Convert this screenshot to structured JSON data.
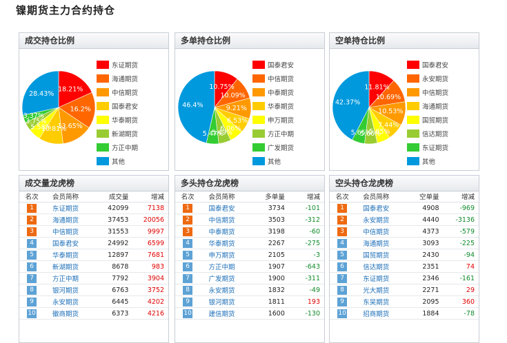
{
  "title": "镍期货主力合约持仓",
  "chart_data": [
    {
      "type": "pie",
      "title": "成交持仓比例",
      "slices": [
        {
          "name": "东证期货",
          "value": 18.21,
          "label": "18.21%",
          "color": "#ff0000"
        },
        {
          "name": "海通期货",
          "value": 16.2,
          "label": "16.2%",
          "color": "#ff6600"
        },
        {
          "name": "中信期货",
          "value": 13.65,
          "label": "13.65%",
          "color": "#ff9900"
        },
        {
          "name": "国泰君安",
          "value": 10.81,
          "label": "10.81%",
          "color": "#ffcc00"
        },
        {
          "name": "华泰期货",
          "value": 5.58,
          "label": "5.58%",
          "color": "#ffff00"
        },
        {
          "name": "新湖期货",
          "value": 3.75,
          "label": "3.75%",
          "color": "#99cc33"
        },
        {
          "name": "方正中期",
          "value": 3.37,
          "label": "3.37%",
          "color": "#33cc33"
        },
        {
          "name": "其他",
          "value": 28.43,
          "label": "28.43%",
          "color": "#0099dd"
        }
      ]
    },
    {
      "type": "pie",
      "title": "多单持仓比例",
      "slices": [
        {
          "name": "国泰君安",
          "value": 10.75,
          "label": "10.75%",
          "color": "#ff0000"
        },
        {
          "name": "中信期货",
          "value": 10.09,
          "label": "10.09%",
          "color": "#ff6600"
        },
        {
          "name": "中泰期货",
          "value": 9.21,
          "label": "9.21%",
          "color": "#ff9900"
        },
        {
          "name": "华泰期货",
          "value": 6.53,
          "label": "6.53%",
          "color": "#ffcc00"
        },
        {
          "name": "申万期货",
          "value": 6.06,
          "label": "6.06%",
          "color": "#ffff00"
        },
        {
          "name": "方正中期",
          "value": 5.49,
          "label": "5.49%",
          "color": "#99cc33"
        },
        {
          "name": "广发期货",
          "value": 5.47,
          "label": "5.47%",
          "color": "#33cc33"
        },
        {
          "name": "其他",
          "value": 46.4,
          "label": "46.4%",
          "color": "#0099dd"
        }
      ]
    },
    {
      "type": "pie",
      "title": "空单持仓比例",
      "slices": [
        {
          "name": "国泰君安",
          "value": 11.81,
          "label": "11.81%",
          "color": "#ff0000"
        },
        {
          "name": "永安期货",
          "value": 10.69,
          "label": "10.69%",
          "color": "#ff6600"
        },
        {
          "name": "中信期货",
          "value": 10.53,
          "label": "10.53%",
          "color": "#ff9900"
        },
        {
          "name": "海通期货",
          "value": 7.44,
          "label": "7.44%",
          "color": "#ffcc00"
        },
        {
          "name": "国贸期货",
          "value": 5.85,
          "label": "5.85%",
          "color": "#ffff00"
        },
        {
          "name": "信达期货",
          "value": 5.66,
          "label": "5.66%",
          "color": "#99cc33"
        },
        {
          "name": "东证期货",
          "value": 5.65,
          "label": "5.65%",
          "color": "#33cc33"
        },
        {
          "name": "其他",
          "value": 42.37,
          "label": "42.37%",
          "color": "#0099dd"
        }
      ]
    },
    {
      "type": "table",
      "title": "成交量龙虎榜",
      "columns": [
        "名次",
        "会员简称",
        "成交量",
        "增减"
      ],
      "rows": [
        {
          "rank": "1",
          "member": "东证期货",
          "volume": "42099",
          "change": "7138"
        },
        {
          "rank": "2",
          "member": "海通期货",
          "volume": "37453",
          "change": "20056"
        },
        {
          "rank": "3",
          "member": "中信期货",
          "volume": "31553",
          "change": "9997"
        },
        {
          "rank": "4",
          "member": "国泰君安",
          "volume": "24992",
          "change": "6599"
        },
        {
          "rank": "5",
          "member": "华泰期货",
          "volume": "12897",
          "change": "7681"
        },
        {
          "rank": "6",
          "member": "新湖期货",
          "volume": "8678",
          "change": "983"
        },
        {
          "rank": "7",
          "member": "方正中期",
          "volume": "7792",
          "change": "3904"
        },
        {
          "rank": "8",
          "member": "银河期货",
          "volume": "6763",
          "change": "3752"
        },
        {
          "rank": "9",
          "member": "永安期货",
          "volume": "6445",
          "change": "4202"
        },
        {
          "rank": "10",
          "member": "徽商期货",
          "volume": "6373",
          "change": "4216"
        }
      ]
    },
    {
      "type": "table",
      "title": "多头持仓龙虎榜",
      "columns": [
        "名次",
        "会员简称",
        "多单量",
        "增减"
      ],
      "rows": [
        {
          "rank": "1",
          "member": "国泰君安",
          "volume": "3734",
          "change": "-101"
        },
        {
          "rank": "2",
          "member": "中信期货",
          "volume": "3503",
          "change": "-312"
        },
        {
          "rank": "3",
          "member": "中泰期货",
          "volume": "3198",
          "change": "-60"
        },
        {
          "rank": "4",
          "member": "华泰期货",
          "volume": "2267",
          "change": "-275"
        },
        {
          "rank": "5",
          "member": "申万期货",
          "volume": "2105",
          "change": "-3"
        },
        {
          "rank": "6",
          "member": "方正中期",
          "volume": "1907",
          "change": "-643"
        },
        {
          "rank": "7",
          "member": "广发期货",
          "volume": "1900",
          "change": "-311"
        },
        {
          "rank": "8",
          "member": "永安期货",
          "volume": "1832",
          "change": "-49"
        },
        {
          "rank": "9",
          "member": "银河期货",
          "volume": "1811",
          "change": "193"
        },
        {
          "rank": "10",
          "member": "建信期货",
          "volume": "1600",
          "change": "-130"
        }
      ]
    },
    {
      "type": "table",
      "title": "空头持仓龙虎榜",
      "columns": [
        "名次",
        "会员简称",
        "空单量",
        "增减"
      ],
      "rows": [
        {
          "rank": "1",
          "member": "国泰君安",
          "volume": "4908",
          "change": "-969"
        },
        {
          "rank": "2",
          "member": "永安期货",
          "volume": "4440",
          "change": "-3136"
        },
        {
          "rank": "3",
          "member": "中信期货",
          "volume": "4373",
          "change": "-579"
        },
        {
          "rank": "4",
          "member": "海通期货",
          "volume": "3093",
          "change": "-225"
        },
        {
          "rank": "5",
          "member": "国贸期货",
          "volume": "2430",
          "change": "-94"
        },
        {
          "rank": "6",
          "member": "信达期货",
          "volume": "2351",
          "change": "74"
        },
        {
          "rank": "7",
          "member": "东证期货",
          "volume": "2346",
          "change": "-161"
        },
        {
          "rank": "8",
          "member": "光大期货",
          "volume": "2271",
          "change": "29"
        },
        {
          "rank": "9",
          "member": "东吴期货",
          "volume": "2095",
          "change": "360"
        },
        {
          "rank": "10",
          "member": "招商期货",
          "volume": "1884",
          "change": "-78"
        }
      ]
    }
  ]
}
